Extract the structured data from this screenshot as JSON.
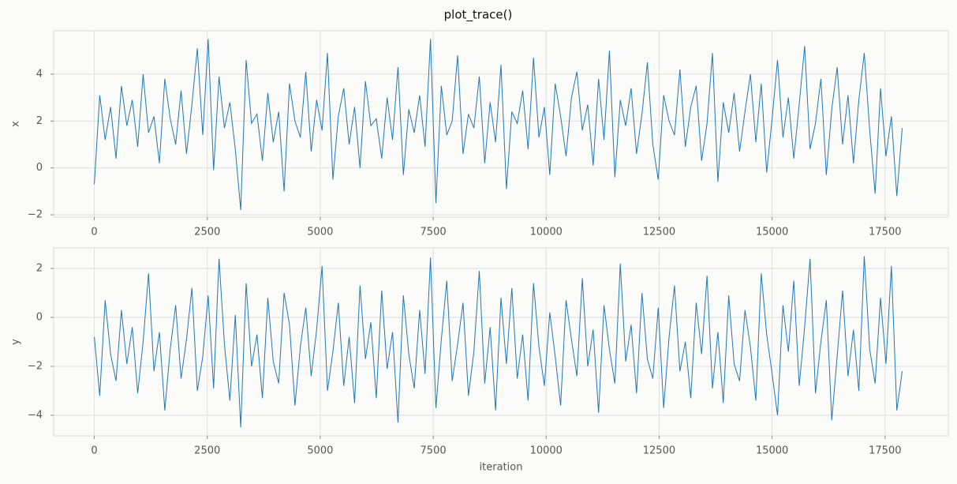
{
  "title": "plot_trace()",
  "chart_data": [
    {
      "type": "line",
      "ylabel": "x",
      "color": "#1f77b4",
      "grid": true,
      "xlim": [
        -900,
        18900
      ],
      "ylim": [
        -2.1,
        5.85
      ],
      "xticks": [
        0,
        2500,
        5000,
        7500,
        10000,
        12500,
        15000,
        17500
      ],
      "yticks": [
        {
          "value": -2,
          "label": "−2"
        },
        0,
        2,
        4
      ],
      "x": [
        0,
        120,
        240,
        360,
        480,
        600,
        720,
        840,
        960,
        1080,
        1200,
        1320,
        1440,
        1560,
        1680,
        1800,
        1920,
        2040,
        2160,
        2280,
        2400,
        2520,
        2640,
        2760,
        2880,
        3000,
        3120,
        3240,
        3360,
        3480,
        3600,
        3720,
        3840,
        3960,
        4080,
        4200,
        4320,
        4440,
        4560,
        4680,
        4800,
        4920,
        5040,
        5160,
        5280,
        5400,
        5520,
        5640,
        5760,
        5880,
        6000,
        6120,
        6240,
        6360,
        6480,
        6600,
        6720,
        6840,
        6960,
        7080,
        7200,
        7320,
        7440,
        7560,
        7680,
        7800,
        7920,
        8040,
        8160,
        8280,
        8400,
        8520,
        8640,
        8760,
        8880,
        9000,
        9120,
        9240,
        9360,
        9480,
        9600,
        9720,
        9840,
        9960,
        10080,
        10200,
        10320,
        10440,
        10560,
        10680,
        10800,
        10920,
        11040,
        11160,
        11280,
        11400,
        11520,
        11640,
        11760,
        11880,
        12000,
        12120,
        12240,
        12360,
        12480,
        12600,
        12720,
        12840,
        12960,
        13080,
        13200,
        13320,
        13440,
        13560,
        13680,
        13800,
        13920,
        14040,
        14160,
        14280,
        14400,
        14520,
        14640,
        14760,
        14880,
        15000,
        15120,
        15240,
        15360,
        15480,
        15600,
        15720,
        15840,
        15960,
        16080,
        16200,
        16320,
        16440,
        16560,
        16680,
        16800,
        16920,
        17040,
        17160,
        17280,
        17400,
        17520,
        17640,
        17760,
        17880
      ],
      "values": [
        -0.7,
        3.1,
        1.2,
        2.6,
        0.4,
        3.5,
        1.8,
        2.9,
        0.9,
        4.0,
        1.5,
        2.2,
        0.2,
        3.8,
        2.1,
        1.0,
        3.3,
        0.6,
        2.7,
        5.1,
        1.4,
        5.5,
        -0.1,
        3.9,
        1.7,
        2.8,
        0.8,
        -1.8,
        4.6,
        1.9,
        2.3,
        0.3,
        3.2,
        1.1,
        2.4,
        -1.0,
        3.6,
        2.0,
        1.3,
        4.1,
        0.7,
        2.9,
        1.6,
        4.9,
        -0.5,
        2.2,
        3.4,
        1.0,
        2.6,
        0.0,
        3.7,
        1.8,
        2.1,
        0.4,
        3.0,
        1.2,
        4.3,
        -0.3,
        2.5,
        1.5,
        3.1,
        0.9,
        5.5,
        -1.5,
        3.5,
        1.4,
        2.0,
        4.8,
        0.6,
        2.3,
        1.7,
        3.9,
        0.2,
        2.8,
        1.1,
        4.4,
        -0.9,
        2.4,
        1.9,
        3.3,
        0.8,
        4.7,
        1.3,
        2.6,
        -0.3,
        3.6,
        2.2,
        0.5,
        3.0,
        4.1,
        1.6,
        2.7,
        0.1,
        3.8,
        1.2,
        5.0,
        -0.4,
        2.9,
        1.8,
        3.4,
        0.6,
        2.3,
        4.5,
        1.0,
        -0.5,
        3.1,
        2.0,
        1.4,
        4.2,
        0.9,
        2.6,
        3.5,
        0.3,
        1.9,
        4.9,
        -0.6,
        2.8,
        1.5,
        3.2,
        0.7,
        2.4,
        4.0,
        1.1,
        3.6,
        -0.2,
        2.1,
        4.6,
        1.3,
        3.0,
        0.4,
        2.7,
        5.2,
        0.8,
        1.9,
        3.8,
        -0.3,
        2.5,
        4.3,
        1.0,
        3.1,
        0.2,
        2.9,
        4.9,
        1.6,
        -1.1,
        3.4,
        0.5,
        2.2,
        -1.2,
        1.7
      ]
    },
    {
      "type": "line",
      "ylabel": "y",
      "xlabel": "iteration",
      "color": "#1f77b4",
      "grid": true,
      "xlim": [
        -900,
        18900
      ],
      "ylim": [
        -4.84,
        2.84
      ],
      "xticks": [
        0,
        2500,
        5000,
        7500,
        10000,
        12500,
        15000,
        17500
      ],
      "yticks": [
        {
          "value": -4,
          "label": "−4"
        },
        {
          "value": -2,
          "label": "−2"
        },
        0,
        2
      ],
      "x": [
        0,
        120,
        240,
        360,
        480,
        600,
        720,
        840,
        960,
        1080,
        1200,
        1320,
        1440,
        1560,
        1680,
        1800,
        1920,
        2040,
        2160,
        2280,
        2400,
        2520,
        2640,
        2760,
        2880,
        3000,
        3120,
        3240,
        3360,
        3480,
        3600,
        3720,
        3840,
        3960,
        4080,
        4200,
        4320,
        4440,
        4560,
        4680,
        4800,
        4920,
        5040,
        5160,
        5280,
        5400,
        5520,
        5640,
        5760,
        5880,
        6000,
        6120,
        6240,
        6360,
        6480,
        6600,
        6720,
        6840,
        6960,
        7080,
        7200,
        7320,
        7440,
        7560,
        7680,
        7800,
        7920,
        8040,
        8160,
        8280,
        8400,
        8520,
        8640,
        8760,
        8880,
        9000,
        9120,
        9240,
        9360,
        9480,
        9600,
        9720,
        9840,
        9960,
        10080,
        10200,
        10320,
        10440,
        10560,
        10680,
        10800,
        10920,
        11040,
        11160,
        11280,
        11400,
        11520,
        11640,
        11760,
        11880,
        12000,
        12120,
        12240,
        12360,
        12480,
        12600,
        12720,
        12840,
        12960,
        13080,
        13200,
        13320,
        13440,
        13560,
        13680,
        13800,
        13920,
        14040,
        14160,
        14280,
        14400,
        14520,
        14640,
        14760,
        14880,
        15000,
        15120,
        15240,
        15360,
        15480,
        15600,
        15720,
        15840,
        15960,
        16080,
        16200,
        16320,
        16440,
        16560,
        16680,
        16800,
        16920,
        17040,
        17160,
        17280,
        17400,
        17520,
        17640,
        17760,
        17880
      ],
      "values": [
        -0.8,
        -3.2,
        0.7,
        -1.5,
        -2.6,
        0.3,
        -1.9,
        -0.4,
        -3.1,
        -1.0,
        1.8,
        -2.2,
        -0.6,
        -3.8,
        -1.3,
        0.5,
        -2.5,
        -0.9,
        1.2,
        -3.0,
        -1.6,
        0.9,
        -2.9,
        2.4,
        -1.1,
        -3.4,
        0.1,
        -4.5,
        1.4,
        -2.0,
        -0.7,
        -3.3,
        0.8,
        -1.8,
        -2.7,
        1.0,
        -0.3,
        -3.6,
        -1.2,
        0.4,
        -2.4,
        -0.5,
        2.1,
        -3.0,
        -1.4,
        0.6,
        -2.8,
        -0.8,
        -3.5,
        1.3,
        -1.7,
        -0.2,
        -3.3,
        1.1,
        -2.1,
        -0.6,
        -4.3,
        0.9,
        -1.5,
        -2.9,
        0.3,
        -2.3,
        2.45,
        -3.7,
        -0.9,
        1.5,
        -2.6,
        -1.1,
        0.6,
        -3.2,
        -1.4,
        1.9,
        -2.7,
        -0.4,
        -3.8,
        0.8,
        -1.9,
        1.2,
        -2.5,
        -0.7,
        -3.4,
        1.4,
        -1.2,
        -2.8,
        0.2,
        -1.6,
        -3.6,
        0.7,
        -0.9,
        -2.4,
        1.6,
        -2.0,
        -0.5,
        -3.9,
        0.5,
        -1.3,
        -2.7,
        2.2,
        -1.8,
        -0.3,
        -3.1,
        1.0,
        -1.7,
        -2.5,
        0.4,
        -3.7,
        -0.8,
        1.3,
        -2.2,
        -1.0,
        -3.3,
        0.6,
        -1.5,
        1.7,
        -2.9,
        -0.6,
        -3.5,
        0.9,
        -1.9,
        -2.6,
        0.3,
        -1.2,
        -3.4,
        1.8,
        -0.7,
        -2.3,
        -4.0,
        0.5,
        -1.4,
        1.5,
        -2.8,
        -0.4,
        2.4,
        -3.1,
        -1.0,
        0.7,
        -4.2,
        -1.6,
        1.1,
        -2.4,
        -0.5,
        -3.0,
        2.5,
        -1.3,
        -2.7,
        0.8,
        -1.9,
        2.1,
        -3.8,
        -2.2
      ]
    }
  ]
}
